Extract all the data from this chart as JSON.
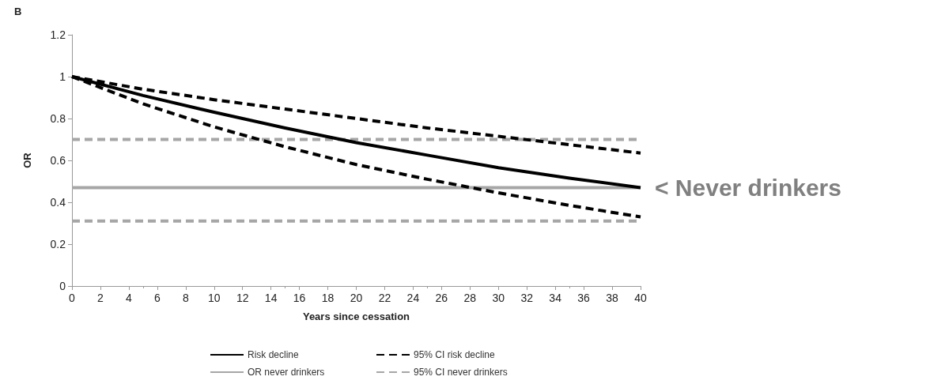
{
  "chart_data": {
    "type": "line",
    "xlabel": "Years since cessation",
    "ylabel": "OR",
    "x": [
      0,
      5,
      10,
      15,
      20,
      25,
      30,
      35,
      40
    ],
    "series": [
      {
        "name": "Risk decline",
        "color": "#000000",
        "line_style": "solid",
        "values": [
          1,
          0.91,
          0.83,
          0.755,
          0.685,
          0.625,
          0.565,
          0.515,
          0.47
        ]
      },
      {
        "name": "95% CI risk decline",
        "color": "#000000",
        "line_style": "dashed",
        "values": [
          1,
          0.94,
          0.89,
          0.845,
          0.8,
          0.755,
          0.715,
          0.675,
          0.635
        ]
      },
      {
        "name": null,
        "color": "#000000",
        "line_style": "dashed",
        "values": [
          1,
          0.87,
          0.76,
          0.665,
          0.58,
          0.51,
          0.445,
          0.385,
          0.33
        ]
      },
      {
        "name": "OR never drinkers",
        "color": "#a6a6a6",
        "line_style": "solid",
        "values": [
          0.47,
          0.47,
          0.47,
          0.47,
          0.47,
          0.47,
          0.47,
          0.47,
          0.47
        ]
      },
      {
        "name": "95% CI never drinkers",
        "color": "#a6a6a6",
        "line_style": "dashed",
        "values": [
          0.7,
          0.7,
          0.7,
          0.7,
          0.7,
          0.7,
          0.7,
          0.7,
          0.7
        ]
      },
      {
        "name": null,
        "color": "#a6a6a6",
        "line_style": "dashed",
        "values": [
          0.31,
          0.31,
          0.31,
          0.31,
          0.31,
          0.31,
          0.31,
          0.31,
          0.31
        ]
      }
    ],
    "xlim": [
      0,
      40
    ],
    "xticks": [
      0,
      2,
      4,
      6,
      8,
      10,
      12,
      14,
      16,
      18,
      20,
      22,
      24,
      26,
      28,
      30,
      32,
      34,
      36,
      38,
      40
    ],
    "ylim": [
      0,
      1.2
    ],
    "yticks": [
      0,
      0.2,
      0.4,
      0.6,
      0.8,
      1,
      1.2
    ],
    "annotations": [
      "B",
      {
        "text": "< Never drinkers",
        "x": 40,
        "y": 0.47
      }
    ],
    "grid": false,
    "legend": "bottom",
    "marker": "none"
  }
}
